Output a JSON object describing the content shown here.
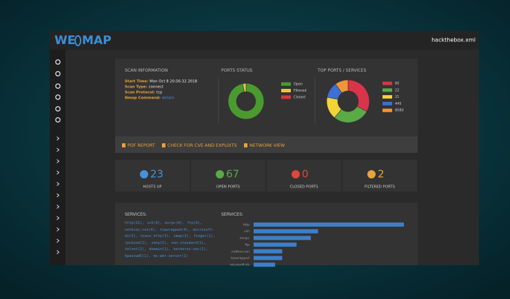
{
  "header": {
    "logo_left": "WE",
    "logo_right": "MAP",
    "file": "hackthebox.xml"
  },
  "scan_info": {
    "title": "SCAN INFORMATION",
    "rows": [
      {
        "label": "Start Time:",
        "value": "Mon Oct 8 20:56:32 2018"
      },
      {
        "label": "Scan Type:",
        "value": "connect"
      },
      {
        "label": "Scan Protocol:",
        "value": "tcp"
      },
      {
        "label": "Nmap Command:",
        "value": "details"
      }
    ]
  },
  "actions": [
    "PDF REPORT",
    "CHECK FOR CVE AND EXPLOITS",
    "NETWORK VIEW"
  ],
  "stats": [
    {
      "value": 23,
      "label": "HOSTS UP",
      "color": "#4a90d9"
    },
    {
      "value": 67,
      "label": "OPEN PORTS",
      "color": "#5aaa46"
    },
    {
      "value": 0,
      "label": "CLOSED PORTS",
      "color": "#e0463c"
    },
    {
      "value": 2,
      "label": "FILTERED PORTS",
      "color": "#e8a33a"
    }
  ],
  "services": {
    "title": "SERVICES:",
    "text": "http(21), ssh(9), msrpc(8), ftp(6), netbios-ssn(4), tcpwrapped(4), microsoft-ds(3), ncacn_http(3), imap(3), finger(1), rpcbind(1), smtp(1), non-standard(1), telnet(1), domain(1), kerberos-sec(1), kpasswd5(1), ms-wbt-server(1)"
  },
  "chart_data": [
    {
      "type": "pie",
      "title": "PORTS STATUS",
      "categories": [
        "Open",
        "Filtered",
        "Closed"
      ],
      "values": [
        67,
        2,
        0
      ],
      "colors": [
        "#4a9a30",
        "#e8c547",
        "#d43a3a"
      ]
    },
    {
      "type": "pie",
      "title": "TOP PORTS / SERVICES",
      "categories": [
        "80",
        "22",
        "21",
        "445",
        "8080"
      ],
      "values": [
        33,
        28,
        17,
        12,
        10
      ],
      "colors": [
        "#d9344a",
        "#5aaa46",
        "#f2d43a",
        "#3d6fd6",
        "#f0953a"
      ]
    },
    {
      "type": "bar",
      "orientation": "horizontal",
      "title": "SERVICES:",
      "categories": [
        "http",
        "ssh",
        "msrpc",
        "ftp",
        "netbios-ssn",
        "tcpwrapped",
        "microsoft-ds"
      ],
      "values": [
        21,
        9,
        8,
        6,
        4,
        4,
        3
      ],
      "color": "#3d7fc9"
    }
  ]
}
